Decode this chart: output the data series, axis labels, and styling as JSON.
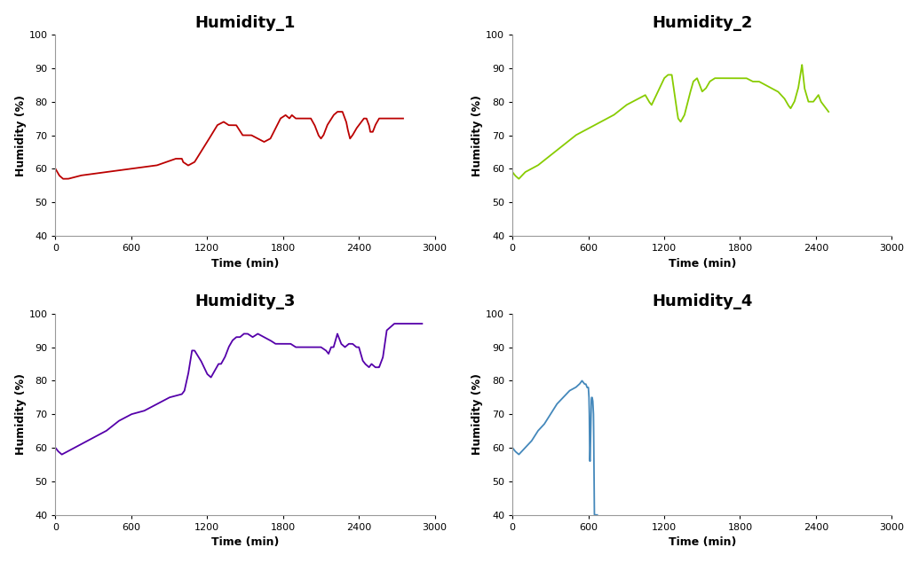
{
  "titles": [
    "Humidity_1",
    "Humidity_2",
    "Humidity_3",
    "Humidity_4"
  ],
  "xlabel": "Time (min)",
  "ylabel": "Humidity (%)",
  "xlim": [
    0,
    3000
  ],
  "ylim": [
    40,
    100
  ],
  "xticks": [
    0,
    600,
    1200,
    1800,
    2400,
    3000
  ],
  "yticks": [
    40,
    50,
    60,
    70,
    80,
    90,
    100
  ],
  "colors": [
    "#bb0000",
    "#88cc00",
    "#5500aa",
    "#4488bb"
  ],
  "linewidth": 1.3,
  "title_fontsize": 13,
  "label_fontsize": 9,
  "tick_fontsize": 8,
  "background_color": "#ffffff",
  "h1_knots": [
    [
      0,
      60
    ],
    [
      30,
      58
    ],
    [
      60,
      57
    ],
    [
      100,
      57
    ],
    [
      200,
      58
    ],
    [
      400,
      59
    ],
    [
      600,
      60
    ],
    [
      800,
      61
    ],
    [
      950,
      63
    ],
    [
      1000,
      63
    ],
    [
      1010,
      62
    ],
    [
      1050,
      61
    ],
    [
      1100,
      62
    ],
    [
      1150,
      65
    ],
    [
      1200,
      68
    ],
    [
      1280,
      73
    ],
    [
      1330,
      74
    ],
    [
      1370,
      73
    ],
    [
      1430,
      73
    ],
    [
      1480,
      70
    ],
    [
      1550,
      70
    ],
    [
      1600,
      69
    ],
    [
      1650,
      68
    ],
    [
      1700,
      69
    ],
    [
      1780,
      75
    ],
    [
      1820,
      76
    ],
    [
      1850,
      75
    ],
    [
      1870,
      76
    ],
    [
      1900,
      75
    ],
    [
      1970,
      75
    ],
    [
      2020,
      75
    ],
    [
      2050,
      73
    ],
    [
      2080,
      70
    ],
    [
      2100,
      69
    ],
    [
      2120,
      70
    ],
    [
      2150,
      73
    ],
    [
      2200,
      76
    ],
    [
      2230,
      77
    ],
    [
      2270,
      77
    ],
    [
      2300,
      74
    ],
    [
      2310,
      72
    ],
    [
      2330,
      69
    ],
    [
      2350,
      70
    ],
    [
      2380,
      72
    ],
    [
      2400,
      73
    ],
    [
      2440,
      75
    ],
    [
      2460,
      75
    ],
    [
      2480,
      73
    ],
    [
      2490,
      71
    ],
    [
      2510,
      71
    ],
    [
      2530,
      73
    ],
    [
      2560,
      75
    ],
    [
      2600,
      75
    ],
    [
      2650,
      75
    ],
    [
      2700,
      75
    ],
    [
      2750,
      75
    ]
  ],
  "h2_knots": [
    [
      0,
      59
    ],
    [
      20,
      58
    ],
    [
      50,
      57
    ],
    [
      100,
      59
    ],
    [
      200,
      61
    ],
    [
      300,
      64
    ],
    [
      400,
      67
    ],
    [
      500,
      70
    ],
    [
      600,
      72
    ],
    [
      700,
      74
    ],
    [
      800,
      76
    ],
    [
      900,
      79
    ],
    [
      1000,
      81
    ],
    [
      1050,
      82
    ],
    [
      1080,
      80
    ],
    [
      1100,
      79
    ],
    [
      1150,
      83
    ],
    [
      1200,
      87
    ],
    [
      1230,
      88
    ],
    [
      1260,
      88
    ],
    [
      1290,
      80
    ],
    [
      1310,
      75
    ],
    [
      1330,
      74
    ],
    [
      1360,
      76
    ],
    [
      1400,
      82
    ],
    [
      1430,
      86
    ],
    [
      1460,
      87
    ],
    [
      1480,
      85
    ],
    [
      1500,
      83
    ],
    [
      1530,
      84
    ],
    [
      1560,
      86
    ],
    [
      1600,
      87
    ],
    [
      1650,
      87
    ],
    [
      1700,
      87
    ],
    [
      1750,
      87
    ],
    [
      1800,
      87
    ],
    [
      1850,
      87
    ],
    [
      1900,
      86
    ],
    [
      1950,
      86
    ],
    [
      2000,
      85
    ],
    [
      2050,
      84
    ],
    [
      2100,
      83
    ],
    [
      2150,
      81
    ],
    [
      2180,
      79
    ],
    [
      2200,
      78
    ],
    [
      2230,
      80
    ],
    [
      2260,
      84
    ],
    [
      2290,
      91
    ],
    [
      2310,
      84
    ],
    [
      2340,
      80
    ],
    [
      2380,
      80
    ],
    [
      2400,
      81
    ],
    [
      2420,
      82
    ],
    [
      2440,
      80
    ],
    [
      2460,
      79
    ],
    [
      2480,
      78
    ],
    [
      2500,
      77
    ]
  ],
  "h3_knots": [
    [
      0,
      60
    ],
    [
      20,
      59
    ],
    [
      50,
      58
    ],
    [
      100,
      59
    ],
    [
      200,
      61
    ],
    [
      300,
      63
    ],
    [
      400,
      65
    ],
    [
      500,
      68
    ],
    [
      600,
      70
    ],
    [
      700,
      71
    ],
    [
      800,
      73
    ],
    [
      900,
      75
    ],
    [
      1000,
      76
    ],
    [
      1020,
      77
    ],
    [
      1050,
      82
    ],
    [
      1080,
      89
    ],
    [
      1100,
      89
    ],
    [
      1150,
      86
    ],
    [
      1200,
      82
    ],
    [
      1230,
      81
    ],
    [
      1260,
      83
    ],
    [
      1290,
      85
    ],
    [
      1310,
      85
    ],
    [
      1340,
      87
    ],
    [
      1370,
      90
    ],
    [
      1400,
      92
    ],
    [
      1430,
      93
    ],
    [
      1460,
      93
    ],
    [
      1490,
      94
    ],
    [
      1520,
      94
    ],
    [
      1560,
      93
    ],
    [
      1600,
      94
    ],
    [
      1650,
      93
    ],
    [
      1700,
      92
    ],
    [
      1740,
      91
    ],
    [
      1780,
      91
    ],
    [
      1820,
      91
    ],
    [
      1860,
      91
    ],
    [
      1900,
      90
    ],
    [
      1950,
      90
    ],
    [
      2000,
      90
    ],
    [
      2050,
      90
    ],
    [
      2100,
      90
    ],
    [
      2140,
      89
    ],
    [
      2160,
      88
    ],
    [
      2180,
      90
    ],
    [
      2200,
      90
    ],
    [
      2230,
      94
    ],
    [
      2260,
      91
    ],
    [
      2290,
      90
    ],
    [
      2320,
      91
    ],
    [
      2350,
      91
    ],
    [
      2380,
      90
    ],
    [
      2400,
      90
    ],
    [
      2430,
      86
    ],
    [
      2450,
      85
    ],
    [
      2480,
      84
    ],
    [
      2500,
      85
    ],
    [
      2530,
      84
    ],
    [
      2560,
      84
    ],
    [
      2590,
      87
    ],
    [
      2620,
      95
    ],
    [
      2650,
      96
    ],
    [
      2680,
      97
    ],
    [
      2720,
      97
    ],
    [
      2760,
      97
    ],
    [
      2800,
      97
    ],
    [
      2850,
      97
    ],
    [
      2900,
      97
    ]
  ],
  "h4_knots": [
    [
      0,
      60
    ],
    [
      20,
      59
    ],
    [
      50,
      58
    ],
    [
      100,
      60
    ],
    [
      150,
      62
    ],
    [
      200,
      65
    ],
    [
      250,
      67
    ],
    [
      300,
      70
    ],
    [
      350,
      73
    ],
    [
      400,
      75
    ],
    [
      450,
      77
    ],
    [
      500,
      78
    ],
    [
      530,
      79
    ],
    [
      550,
      80
    ],
    [
      570,
      79
    ],
    [
      580,
      79
    ],
    [
      590,
      78
    ],
    [
      600,
      78
    ],
    [
      605,
      75
    ],
    [
      607,
      72
    ],
    [
      609,
      66
    ],
    [
      611,
      57
    ],
    [
      613,
      56
    ],
    [
      615,
      58
    ],
    [
      617,
      62
    ],
    [
      619,
      67
    ],
    [
      621,
      71
    ],
    [
      623,
      74
    ],
    [
      625,
      75
    ],
    [
      630,
      75
    ],
    [
      635,
      74
    ],
    [
      638,
      72
    ],
    [
      640,
      71
    ],
    [
      641,
      69
    ],
    [
      642,
      65
    ],
    [
      643,
      60
    ],
    [
      644,
      55
    ],
    [
      645,
      50
    ],
    [
      646,
      45
    ],
    [
      647,
      41
    ],
    [
      648,
      40
    ],
    [
      660,
      40
    ],
    [
      670,
      40
    ]
  ]
}
